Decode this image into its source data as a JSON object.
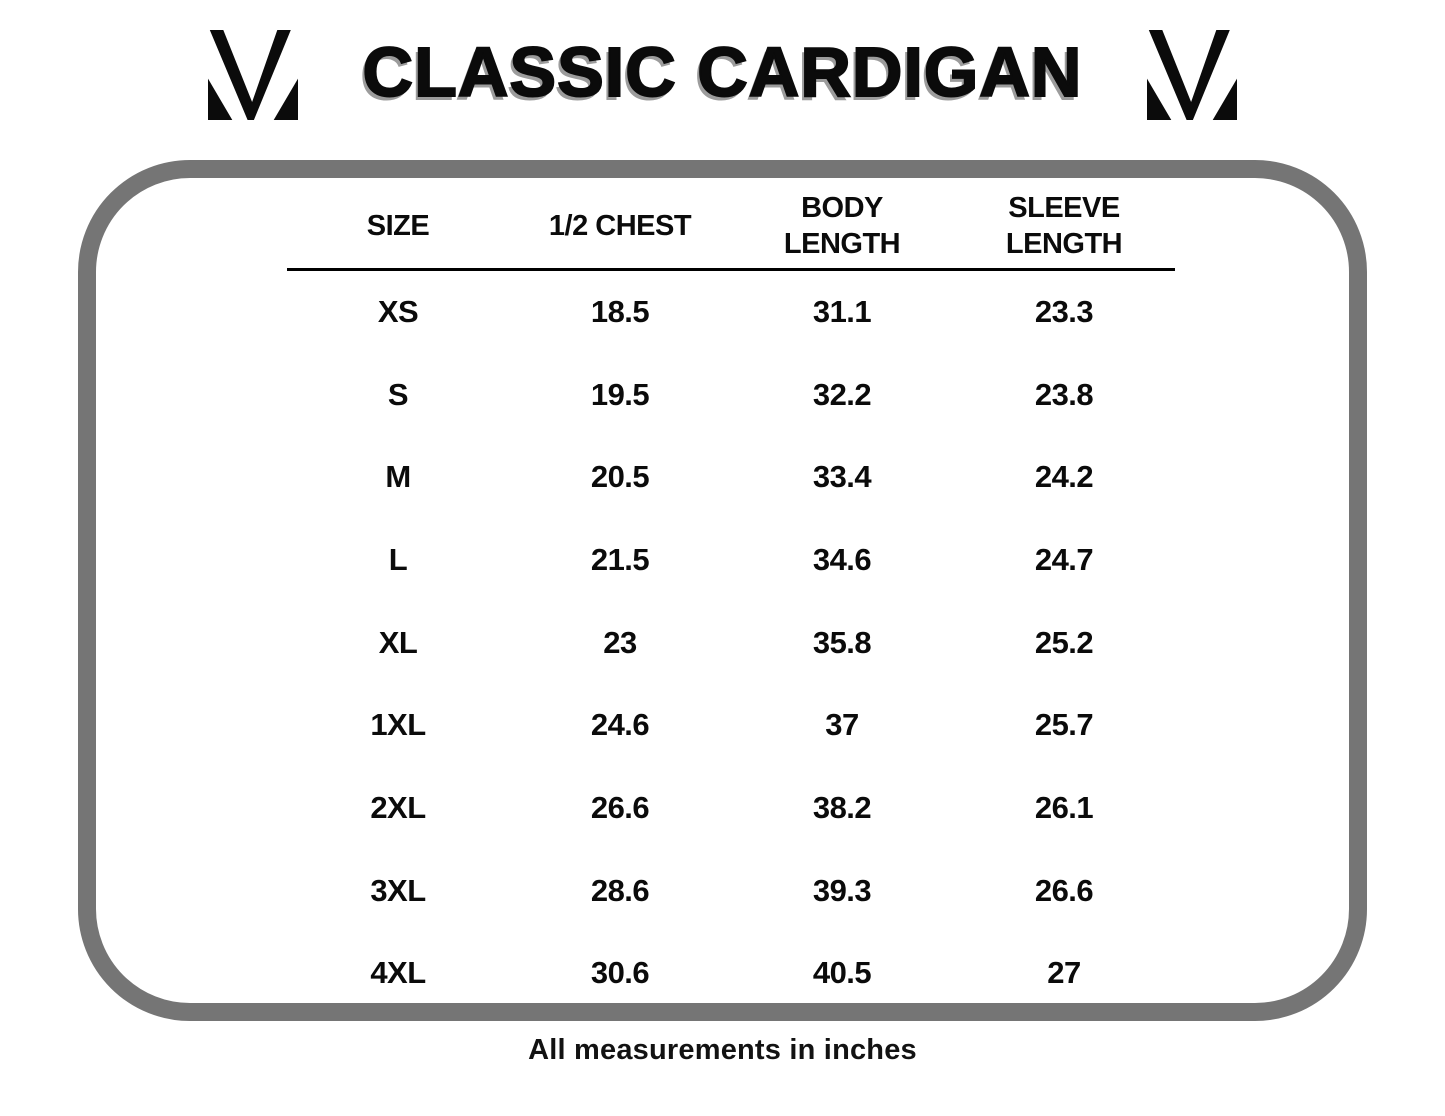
{
  "title": "CLASSIC CARDIGAN",
  "brand": {
    "icon": "m-monogram-icon"
  },
  "table": {
    "headers": [
      "SIZE",
      "1/2 CHEST",
      "BODY LENGTH",
      "SLEEVE LENGTH"
    ],
    "rows": [
      {
        "size": "XS",
        "half_chest": "18.5",
        "body_length": "31.1",
        "sleeve_length": "23.3"
      },
      {
        "size": "S",
        "half_chest": "19.5",
        "body_length": "32.2",
        "sleeve_length": "23.8"
      },
      {
        "size": "M",
        "half_chest": "20.5",
        "body_length": "33.4",
        "sleeve_length": "24.2"
      },
      {
        "size": "L",
        "half_chest": "21.5",
        "body_length": "34.6",
        "sleeve_length": "24.7"
      },
      {
        "size": "XL",
        "half_chest": "23",
        "body_length": "35.8",
        "sleeve_length": "25.2"
      },
      {
        "size": "1XL",
        "half_chest": "24.6",
        "body_length": "37",
        "sleeve_length": "25.7"
      },
      {
        "size": "2XL",
        "half_chest": "26.6",
        "body_length": "38.2",
        "sleeve_length": "26.1"
      },
      {
        "size": "3XL",
        "half_chest": "28.6",
        "body_length": "39.3",
        "sleeve_length": "26.6"
      },
      {
        "size": "4XL",
        "half_chest": "30.6",
        "body_length": "40.5",
        "sleeve_length": "27"
      }
    ]
  },
  "footer": {
    "note": "All measurements in inches"
  },
  "colors": {
    "border_gray": "#757575",
    "title_shadow": "#9c9c9c",
    "ink": "#0b0b0b"
  }
}
